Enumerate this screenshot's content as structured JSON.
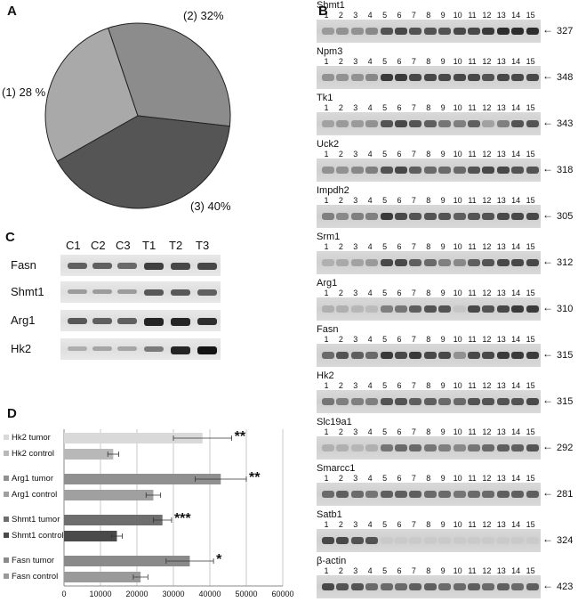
{
  "panels": {
    "a": "A",
    "b": "B",
    "c": "C",
    "d": "D"
  },
  "pie": {
    "labels": [
      "(1) 28 %",
      "(2) 32%",
      "(3) 40%"
    ],
    "colors": [
      "#a9a9a9",
      "#8c8c8c",
      "#555555"
    ]
  },
  "gel": {
    "lanes": [
      "1",
      "2",
      "3",
      "4",
      "5",
      "6",
      "7",
      "8",
      "9",
      "10",
      "11",
      "12",
      "13",
      "14",
      "15"
    ],
    "genes": [
      {
        "name": "Shmt1",
        "bp": "327",
        "intensity": [
          0.45,
          0.5,
          0.5,
          0.55,
          0.8,
          0.85,
          0.8,
          0.8,
          0.8,
          0.85,
          0.85,
          0.9,
          0.95,
          0.95,
          0.95
        ]
      },
      {
        "name": "Npm3",
        "bp": "348",
        "intensity": [
          0.5,
          0.5,
          0.5,
          0.55,
          0.9,
          0.9,
          0.85,
          0.85,
          0.85,
          0.85,
          0.85,
          0.8,
          0.85,
          0.85,
          0.85
        ]
      },
      {
        "name": "Tk1",
        "bp": "343",
        "intensity": [
          0.4,
          0.45,
          0.45,
          0.5,
          0.8,
          0.85,
          0.8,
          0.75,
          0.65,
          0.6,
          0.75,
          0.4,
          0.6,
          0.8,
          0.8
        ]
      },
      {
        "name": "Uck2",
        "bp": "318",
        "intensity": [
          0.5,
          0.5,
          0.55,
          0.6,
          0.8,
          0.85,
          0.75,
          0.7,
          0.7,
          0.7,
          0.8,
          0.85,
          0.85,
          0.8,
          0.8
        ]
      },
      {
        "name": "Impdh2",
        "bp": "305",
        "intensity": [
          0.6,
          0.55,
          0.6,
          0.6,
          0.9,
          0.85,
          0.8,
          0.8,
          0.8,
          0.75,
          0.8,
          0.8,
          0.85,
          0.85,
          0.85
        ]
      },
      {
        "name": "Srm1",
        "bp": "312",
        "intensity": [
          0.3,
          0.35,
          0.4,
          0.45,
          0.85,
          0.85,
          0.75,
          0.7,
          0.6,
          0.55,
          0.75,
          0.8,
          0.85,
          0.85,
          0.85
        ]
      },
      {
        "name": "Arg1",
        "bp": "310",
        "intensity": [
          0.3,
          0.3,
          0.25,
          0.2,
          0.6,
          0.65,
          0.75,
          0.8,
          0.8,
          0.1,
          0.85,
          0.8,
          0.85,
          0.9,
          0.9
        ]
      },
      {
        "name": "Fasn",
        "bp": "315",
        "intensity": [
          0.7,
          0.8,
          0.75,
          0.7,
          0.9,
          0.85,
          0.9,
          0.85,
          0.85,
          0.5,
          0.85,
          0.85,
          0.9,
          0.9,
          0.9
        ]
      },
      {
        "name": "Hk2",
        "bp": "315",
        "intensity": [
          0.65,
          0.6,
          0.6,
          0.6,
          0.8,
          0.8,
          0.75,
          0.75,
          0.7,
          0.7,
          0.8,
          0.8,
          0.8,
          0.8,
          0.85
        ]
      },
      {
        "name": "Slc19a1",
        "bp": "292",
        "intensity": [
          0.3,
          0.3,
          0.25,
          0.3,
          0.65,
          0.7,
          0.7,
          0.65,
          0.6,
          0.55,
          0.65,
          0.7,
          0.75,
          0.75,
          0.8
        ]
      },
      {
        "name": "Smarcc1",
        "bp": "281",
        "intensity": [
          0.7,
          0.75,
          0.7,
          0.65,
          0.75,
          0.75,
          0.75,
          0.7,
          0.7,
          0.65,
          0.7,
          0.7,
          0.75,
          0.75,
          0.75
        ]
      },
      {
        "name": "Satb1",
        "bp": "324",
        "intensity": [
          0.85,
          0.85,
          0.8,
          0.8,
          0.05,
          0.05,
          0.05,
          0.05,
          0.05,
          0.05,
          0.05,
          0.05,
          0.05,
          0.05,
          0.05
        ]
      },
      {
        "name": "β-actin",
        "bp": "423",
        "intensity": [
          0.85,
          0.8,
          0.8,
          0.7,
          0.7,
          0.7,
          0.75,
          0.75,
          0.7,
          0.7,
          0.75,
          0.7,
          0.75,
          0.7,
          0.75
        ]
      }
    ]
  },
  "western": {
    "columns": [
      "C1",
      "C2",
      "C3",
      "T1",
      "T2",
      "T3"
    ],
    "rows": [
      {
        "name": "Fasn",
        "intensity": [
          0.55,
          0.55,
          0.5,
          0.75,
          0.7,
          0.7
        ]
      },
      {
        "name": "Shmt1",
        "intensity": [
          0.2,
          0.2,
          0.2,
          0.6,
          0.6,
          0.55
        ]
      },
      {
        "name": "Arg1",
        "intensity": [
          0.6,
          0.55,
          0.55,
          0.9,
          0.9,
          0.85
        ]
      },
      {
        "name": "Hk2",
        "intensity": [
          0.1,
          0.15,
          0.15,
          0.4,
          0.9,
          1.0
        ]
      }
    ]
  },
  "chart_data": {
    "type": "bar",
    "orientation": "horizontal",
    "categories": [
      "Hk2 tumor",
      "Hk2 control",
      "Arg1 tumor",
      "Arg1 control",
      "Shmt1 tumor",
      "Shmt1 control",
      "Fasn tumor",
      "Fasn control"
    ],
    "values": [
      38000,
      13500,
      43000,
      24500,
      27000,
      14500,
      34500,
      21000
    ],
    "errors": [
      8000,
      1500,
      7000,
      2000,
      2500,
      1500,
      6500,
      2000
    ],
    "significance": [
      "**",
      "",
      "**",
      "",
      "***",
      "",
      "*",
      ""
    ],
    "colors": [
      "#d9d9d9",
      "#b8b8b8",
      "#909090",
      "#a0a0a0",
      "#6e6e6e",
      "#4a4a4a",
      "#8a8a8a",
      "#9a9a9a"
    ],
    "xlim": [
      0,
      60000
    ],
    "xticks": [
      "0",
      "10000",
      "20000",
      "30000",
      "40000",
      "50000",
      "60000"
    ],
    "grid": true
  }
}
